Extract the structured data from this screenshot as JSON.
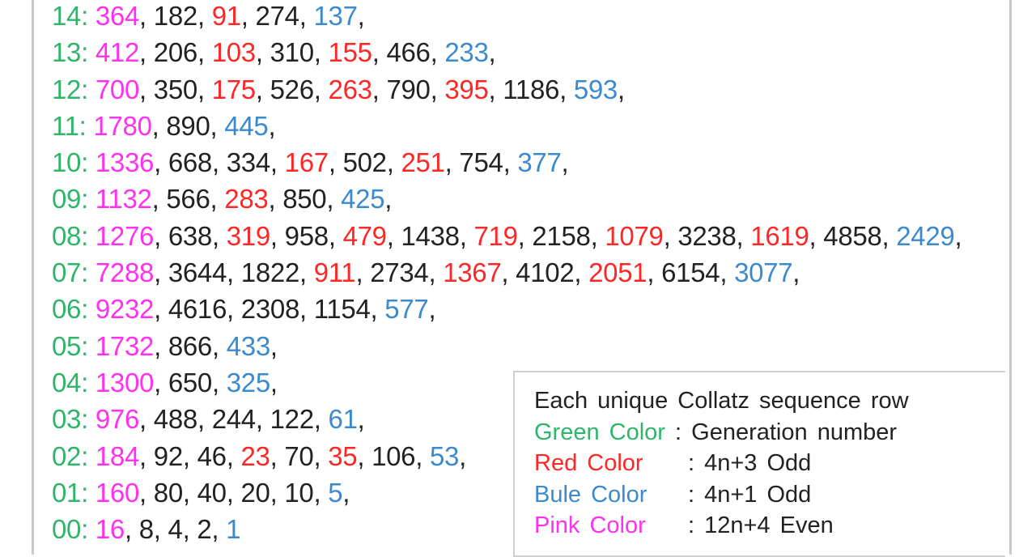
{
  "colors": {
    "generation": "#2fb56a",
    "pink": "#ff30f0",
    "red": "#ff2626",
    "blue": "#3b8ad0",
    "black": "#222222"
  },
  "rows": [
    {
      "gen": "14",
      "items": [
        [
          "364",
          "p"
        ],
        [
          "182",
          "k"
        ],
        [
          "91",
          "r"
        ],
        [
          "274",
          "k"
        ],
        [
          "137",
          "b"
        ]
      ]
    },
    {
      "gen": "13",
      "items": [
        [
          "412",
          "p"
        ],
        [
          "206",
          "k"
        ],
        [
          "103",
          "r"
        ],
        [
          "310",
          "k"
        ],
        [
          "155",
          "r"
        ],
        [
          "466",
          "k"
        ],
        [
          "233",
          "b"
        ]
      ]
    },
    {
      "gen": "12",
      "items": [
        [
          "700",
          "p"
        ],
        [
          "350",
          "k"
        ],
        [
          "175",
          "r"
        ],
        [
          "526",
          "k"
        ],
        [
          "263",
          "r"
        ],
        [
          "790",
          "k"
        ],
        [
          "395",
          "r"
        ],
        [
          "1186",
          "k"
        ],
        [
          "593",
          "b"
        ]
      ]
    },
    {
      "gen": "11",
      "items": [
        [
          "1780",
          "p"
        ],
        [
          "890",
          "k"
        ],
        [
          "445",
          "b"
        ]
      ]
    },
    {
      "gen": "10",
      "items": [
        [
          "1336",
          "p"
        ],
        [
          "668",
          "k"
        ],
        [
          "334",
          "k"
        ],
        [
          "167",
          "r"
        ],
        [
          "502",
          "k"
        ],
        [
          "251",
          "r"
        ],
        [
          "754",
          "k"
        ],
        [
          "377",
          "b"
        ]
      ]
    },
    {
      "gen": "09",
      "items": [
        [
          "1132",
          "p"
        ],
        [
          "566",
          "k"
        ],
        [
          "283",
          "r"
        ],
        [
          "850",
          "k"
        ],
        [
          "425",
          "b"
        ]
      ]
    },
    {
      "gen": "08",
      "items": [
        [
          "1276",
          "p"
        ],
        [
          "638",
          "k"
        ],
        [
          "319",
          "r"
        ],
        [
          "958",
          "k"
        ],
        [
          "479",
          "r"
        ],
        [
          "1438",
          "k"
        ],
        [
          "719",
          "r"
        ],
        [
          "2158",
          "k"
        ],
        [
          "1079",
          "r"
        ],
        [
          "3238",
          "k"
        ],
        [
          "1619",
          "r"
        ],
        [
          "4858",
          "k"
        ],
        [
          "2429",
          "b"
        ]
      ]
    },
    {
      "gen": "07",
      "items": [
        [
          "7288",
          "p"
        ],
        [
          "3644",
          "k"
        ],
        [
          "1822",
          "k"
        ],
        [
          "911",
          "r"
        ],
        [
          "2734",
          "k"
        ],
        [
          "1367",
          "r"
        ],
        [
          "4102",
          "k"
        ],
        [
          "2051",
          "r"
        ],
        [
          "6154",
          "k"
        ],
        [
          "3077",
          "b"
        ]
      ]
    },
    {
      "gen": "06",
      "items": [
        [
          "9232",
          "p"
        ],
        [
          "4616",
          "k"
        ],
        [
          "2308",
          "k"
        ],
        [
          "1154",
          "k"
        ],
        [
          "577",
          "b"
        ]
      ]
    },
    {
      "gen": "05",
      "items": [
        [
          "1732",
          "p"
        ],
        [
          "866",
          "k"
        ],
        [
          "433",
          "b"
        ]
      ]
    },
    {
      "gen": "04",
      "items": [
        [
          "1300",
          "p"
        ],
        [
          "650",
          "k"
        ],
        [
          "325",
          "b"
        ]
      ]
    },
    {
      "gen": "03",
      "items": [
        [
          "976",
          "p"
        ],
        [
          "488",
          "k"
        ],
        [
          "244",
          "k"
        ],
        [
          "122",
          "k"
        ],
        [
          "61",
          "b"
        ]
      ]
    },
    {
      "gen": "02",
      "items": [
        [
          "184",
          "p"
        ],
        [
          "92",
          "k"
        ],
        [
          "46",
          "k"
        ],
        [
          "23",
          "r"
        ],
        [
          "70",
          "k"
        ],
        [
          "35",
          "r"
        ],
        [
          "106",
          "k"
        ],
        [
          "53",
          "b"
        ]
      ]
    },
    {
      "gen": "01",
      "items": [
        [
          "160",
          "p"
        ],
        [
          "80",
          "k"
        ],
        [
          "40",
          "k"
        ],
        [
          "20",
          "k"
        ],
        [
          "10",
          "k"
        ],
        [
          "5",
          "b"
        ]
      ]
    },
    {
      "gen": "00",
      "items": [
        [
          "16",
          "p"
        ],
        [
          "8",
          "k"
        ],
        [
          "4",
          "k"
        ],
        [
          "2",
          "k"
        ],
        [
          "1",
          "b"
        ]
      ],
      "last": true
    }
  ],
  "legend": {
    "title": "Each unique Collatz sequence row",
    "entries": [
      {
        "label": "Green Color",
        "desc": ": Generation number",
        "color": "#2fb56a"
      },
      {
        "label": "Red Color",
        "desc": ": 4n+3 Odd",
        "color": "#ff2626"
      },
      {
        "label": "Bule Color",
        "desc": ": 4n+1 Odd",
        "color": "#3b8ad0"
      },
      {
        "label": "Pink Color",
        "desc": ": 12n+4 Even",
        "color": "#ff30f0"
      }
    ]
  }
}
